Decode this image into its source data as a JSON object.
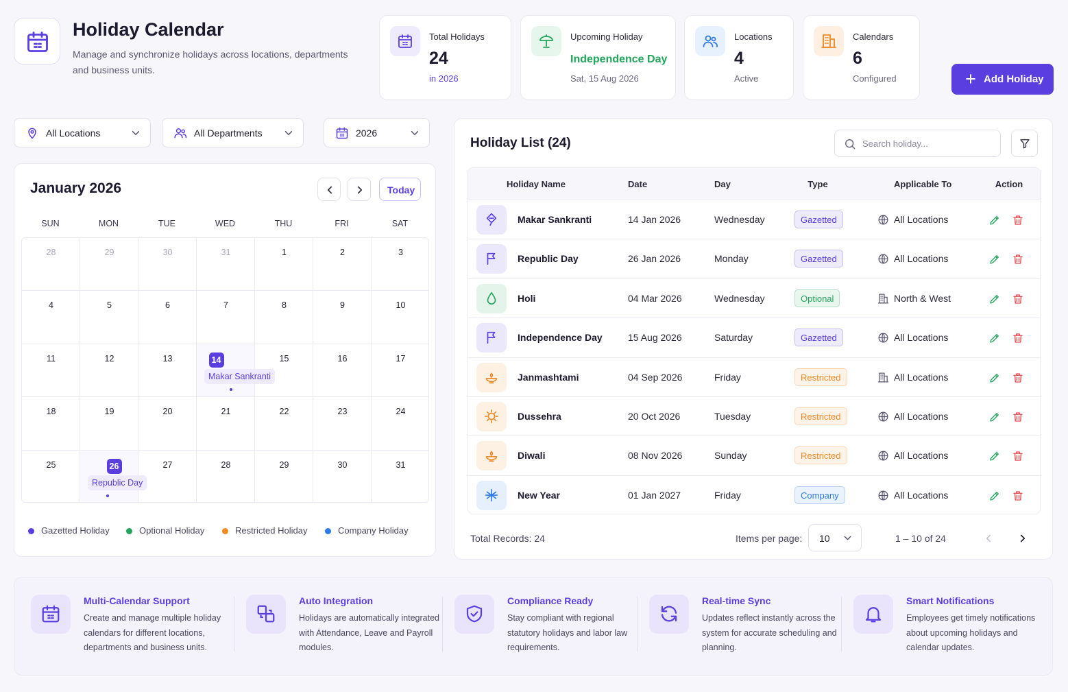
{
  "header": {
    "title": "Holiday Calendar",
    "subtitle": "Manage and synchronize holidays across locations, departments and business units."
  },
  "stats": [
    {
      "label": "Total Holidays",
      "value": "24",
      "sub": "in 2026"
    },
    {
      "label": "Upcoming Holiday",
      "value": "Independence Day",
      "sub": "Sat, 15 Aug 2026"
    },
    {
      "label": "Locations",
      "value": "4",
      "sub": "Active"
    },
    {
      "label": "Calendars",
      "value": "6",
      "sub": "Configured"
    }
  ],
  "add_button": "Add Holiday",
  "filters": [
    "All Locations",
    "All Departments",
    "2026"
  ],
  "calendar": {
    "month": "January 2026",
    "today_button": "Today",
    "weekdays": [
      "SUN",
      "MON",
      "TUE",
      "WED",
      "THU",
      "FRI",
      "SAT"
    ],
    "weeks": [
      [
        {
          "day": "28"
        },
        {
          "day": "29"
        },
        {
          "day": "30"
        },
        {
          "day": "31"
        },
        {
          "day": "1"
        },
        {
          "day": "2"
        },
        {
          "day": "3"
        }
      ],
      [
        {
          "day": "4"
        },
        {
          "day": "5"
        },
        {
          "day": "6"
        },
        {
          "day": "7"
        },
        {
          "day": "8"
        },
        {
          "day": "9"
        },
        {
          "day": "10"
        }
      ],
      [
        {
          "day": "11"
        },
        {
          "day": "12"
        },
        {
          "day": "13"
        },
        {
          "day": "14",
          "event": "Makar Sankranti"
        },
        {
          "day": "15"
        },
        {
          "day": "16"
        },
        {
          "day": "17"
        }
      ],
      [
        {
          "day": "18"
        },
        {
          "day": "19"
        },
        {
          "day": "20"
        },
        {
          "day": "21"
        },
        {
          "day": "22"
        },
        {
          "day": "23"
        },
        {
          "day": "24"
        }
      ],
      [
        {
          "day": "25"
        },
        {
          "day": "26",
          "event": "Republic Day"
        },
        {
          "day": "27"
        },
        {
          "day": "28"
        },
        {
          "day": "29"
        },
        {
          "day": "30"
        },
        {
          "day": "31"
        }
      ]
    ],
    "legend": [
      {
        "label": "Gazetted Holiday",
        "color": "#5b3ee0"
      },
      {
        "label": "Optional Holiday",
        "color": "#22a55b"
      },
      {
        "label": "Restricted Holiday",
        "color": "#f08a24"
      },
      {
        "label": "Company Holiday",
        "color": "#2f7be5"
      }
    ]
  },
  "holiday_list": {
    "title": "Holiday List (24)",
    "search_placeholder": "Search holiday...",
    "columns": [
      "Holiday Name",
      "Date",
      "Day",
      "Type",
      "Applicable To",
      "Action"
    ],
    "rows": [
      {
        "name": "Makar Sankranti",
        "date": "14 Jan 2026",
        "day": "Wednesday",
        "type": "Gazetted",
        "applicable": "All Locations",
        "color": "#5b3ee0"
      },
      {
        "name": "Republic Day",
        "date": "26 Jan 2026",
        "day": "Monday",
        "type": "Gazetted",
        "applicable": "All Locations",
        "color": "#5b3ee0"
      },
      {
        "name": "Holi",
        "date": "04 Mar 2026",
        "day": "Wednesday",
        "type": "Optional",
        "applicable": "North & West",
        "color": "#22a55b"
      },
      {
        "name": "Independence Day",
        "date": "15 Aug 2026",
        "day": "Saturday",
        "type": "Gazetted",
        "applicable": "All Locations",
        "color": "#5b3ee0"
      },
      {
        "name": "Janmashtami",
        "date": "04 Sep 2026",
        "day": "Friday",
        "type": "Restricted",
        "applicable": "All Locations",
        "color": "#f08a24"
      },
      {
        "name": "Dussehra",
        "date": "20 Oct 2026",
        "day": "Tuesday",
        "type": "Restricted",
        "applicable": "All Locations",
        "color": "#f08a24"
      },
      {
        "name": "Diwali",
        "date": "08 Nov 2026",
        "day": "Sunday",
        "type": "Restricted",
        "applicable": "All Locations",
        "color": "#f08a24"
      },
      {
        "name": "New Year",
        "date": "01 Jan 2027",
        "day": "Friday",
        "type": "Company",
        "applicable": "All Locations",
        "color": "#2f7be5"
      }
    ],
    "total_records": "Total Records: 24",
    "items_per_page_label": "Items per page:",
    "items_per_page": "10",
    "range": "1 – 10 of 24"
  },
  "features": [
    {
      "title": "Multi-Calendar Support",
      "text": "Create and manage multiple holiday calendars for different locations, departments and business units."
    },
    {
      "title": "Auto Integration",
      "text": "Holidays are automatically integrated with Attendance, Leave and Payroll modules."
    },
    {
      "title": "Compliance Ready",
      "text": "Stay compliant with regional statutory holidays and labor law requirements."
    },
    {
      "title": "Real-time Sync",
      "text": "Updates reflect instantly across the system for accurate scheduling and planning."
    },
    {
      "title": "Smart Notifications",
      "text": "Employees get timely notifications about upcoming holidays and calendar updates."
    }
  ]
}
